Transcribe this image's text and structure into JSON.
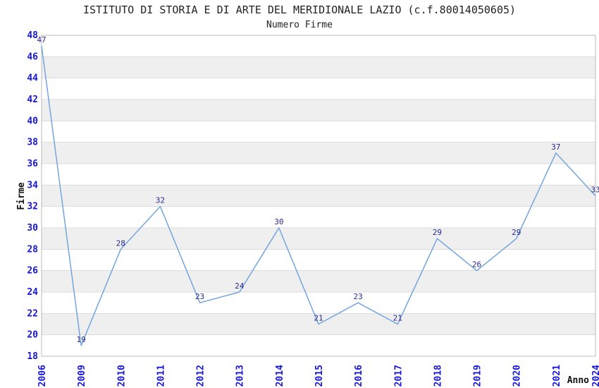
{
  "chart_data": {
    "type": "line",
    "title": "ISTITUTO DI STORIA E DI ARTE DEL MERIDIONALE LAZIO (c.f.80014050605)",
    "subtitle": "Numero Firme",
    "xlabel": "Anno",
    "ylabel": "Firme",
    "categories": [
      "2006",
      "2009",
      "2010",
      "2011",
      "2012",
      "2013",
      "2014",
      "2015",
      "2016",
      "2017",
      "2018",
      "2019",
      "2020",
      "2021",
      "2024"
    ],
    "series": [
      {
        "name": "Numero Firme",
        "values": [
          47,
          19,
          28,
          32,
          23,
          24,
          30,
          21,
          23,
          21,
          29,
          26,
          29,
          37,
          33
        ]
      }
    ],
    "point_labels_shown": true,
    "ylim": [
      18,
      48
    ],
    "ytick_step": 2,
    "yticks": [
      18,
      20,
      22,
      24,
      26,
      28,
      30,
      32,
      34,
      36,
      38,
      40,
      42,
      44,
      46,
      48
    ],
    "grid": "horizontal gridlines every 2 units with alternating shaded bands",
    "legend": "none",
    "colors": {
      "line": "#74a5dd",
      "tick_label": "#1616d9",
      "point_label": "#28288f",
      "band_fill": "#efefef",
      "gridline": "#dcdcdc",
      "plot_border": "#bbbbbb",
      "title_text": "#222222",
      "background": "#ffffff"
    }
  }
}
